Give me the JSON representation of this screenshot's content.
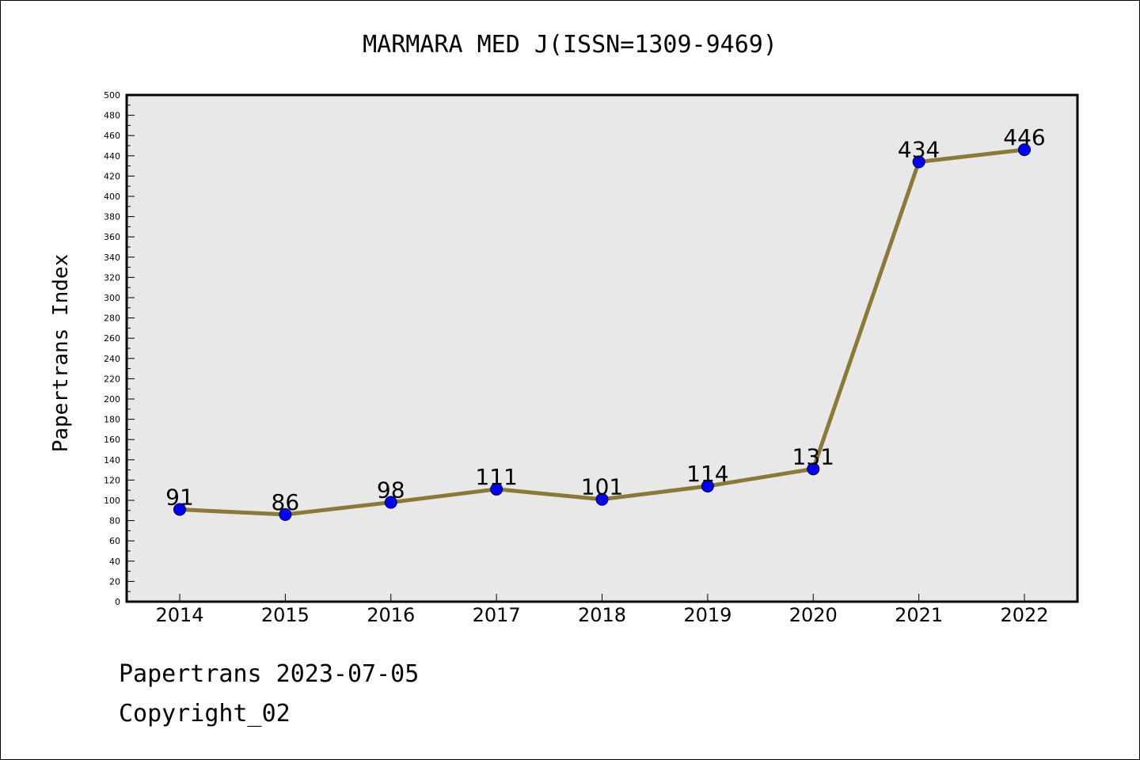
{
  "footer": {
    "line1": "Papertrans 2023-07-05",
    "line2": "Copyright_02"
  },
  "chart_data": {
    "type": "line",
    "title": "MARMARA MED J(ISSN=1309-9469)",
    "xlabel": "",
    "ylabel": "Papertrans Index",
    "categories": [
      "2014",
      "2015",
      "2016",
      "2017",
      "2018",
      "2019",
      "2020",
      "2021",
      "2022"
    ],
    "values": [
      91,
      86,
      98,
      111,
      101,
      114,
      131,
      434,
      446
    ],
    "data_labels": [
      "91",
      "86",
      "98",
      "111",
      "101",
      "114",
      "131",
      "434",
      "446"
    ],
    "ylim": [
      0,
      500
    ],
    "yticks": [
      "0",
      "20",
      "40",
      "60",
      "80",
      "100",
      "120",
      "140",
      "160",
      "180",
      "200",
      "220",
      "240",
      "260",
      "280",
      "300",
      "320",
      "340",
      "360",
      "380",
      "400",
      "420",
      "440",
      "460",
      "480",
      "500"
    ],
    "grid": false,
    "legend": "none",
    "colors": {
      "line": "#8b7a36",
      "marker": "#0000ff",
      "plot_background": "#e8e8e8"
    }
  }
}
